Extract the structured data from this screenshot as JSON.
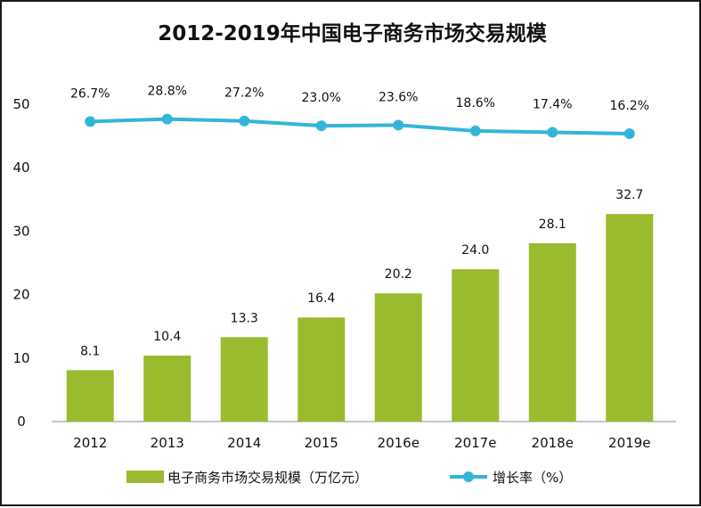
{
  "chart_data": {
    "type": "bar",
    "title": "2012-2019年中国电子商务市场交易规模",
    "categories": [
      "2012",
      "2013",
      "2014",
      "2015",
      "2016e",
      "2017e",
      "2018e",
      "2019e"
    ],
    "ylim": [
      0,
      50
    ],
    "yticks": [
      "0",
      "10",
      "20",
      "30",
      "40",
      "50"
    ],
    "grid": false,
    "legend_position": "bottom",
    "series": [
      {
        "name": "电子商务市场交易规模（万亿元）",
        "type": "bar",
        "values": [
          8.1,
          10.4,
          13.3,
          16.4,
          20.2,
          24.0,
          28.1,
          32.7
        ],
        "labels": [
          "8.1",
          "10.4",
          "13.3",
          "16.4",
          "20.2",
          "24.0",
          "28.1",
          "32.7"
        ],
        "color": "#9bbb2e"
      },
      {
        "name": "增长率（%）",
        "type": "line",
        "values": [
          26.7,
          28.8,
          27.2,
          23.0,
          23.6,
          18.6,
          17.4,
          16.2
        ],
        "labels": [
          "26.7%",
          "28.8%",
          "27.2%",
          "23.0%",
          "23.6%",
          "18.6%",
          "17.4%",
          "16.2%"
        ],
        "color": "#33b5da"
      }
    ]
  }
}
